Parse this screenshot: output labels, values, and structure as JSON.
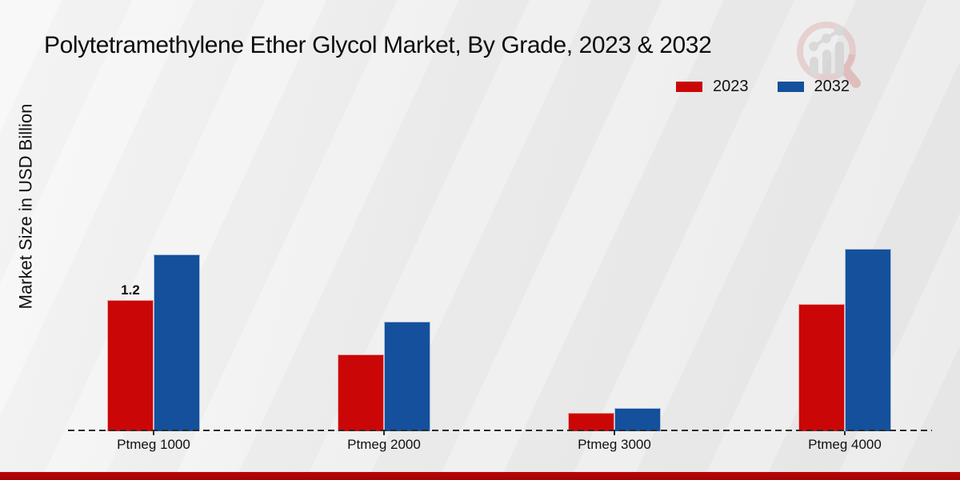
{
  "header": {
    "title": "Polytetramethylene Ether Glycol Market, By Grade, 2023 & 2032"
  },
  "y_axis": {
    "label": "Market Size in USD Billion"
  },
  "annotations": {
    "first_bar_value_label": "1.2"
  },
  "colors": {
    "series_2023": "#cb0606",
    "series_2032": "#14509b",
    "footer_strip": "#b00505",
    "axis": "#2b2b2b"
  },
  "watermark_icon": "magnifier-bar-chart-logo",
  "chart_data": {
    "type": "bar",
    "title": "Polytetramethylene Ether Glycol Market, By Grade, 2023 & 2032",
    "xlabel": "",
    "ylabel": "Market Size in USD Billion",
    "categories": [
      "Ptmeg 1000",
      "Ptmeg 2000",
      "Ptmeg 3000",
      "Ptmeg 4000"
    ],
    "series": [
      {
        "name": "2023",
        "color": "#cb0606",
        "values": [
          1.2,
          0.7,
          0.17,
          1.16
        ]
      },
      {
        "name": "2032",
        "color": "#14509b",
        "values": [
          1.62,
          1.0,
          0.21,
          1.67
        ]
      }
    ],
    "data_labels": [
      {
        "series": "2023",
        "category": "Ptmeg 1000",
        "text": "1.2"
      }
    ],
    "ylim": [
      0,
      2
    ],
    "grid": false,
    "y_axis_ticks_visible": false,
    "baseline_style": "dashed",
    "legend_position": "top-right"
  }
}
